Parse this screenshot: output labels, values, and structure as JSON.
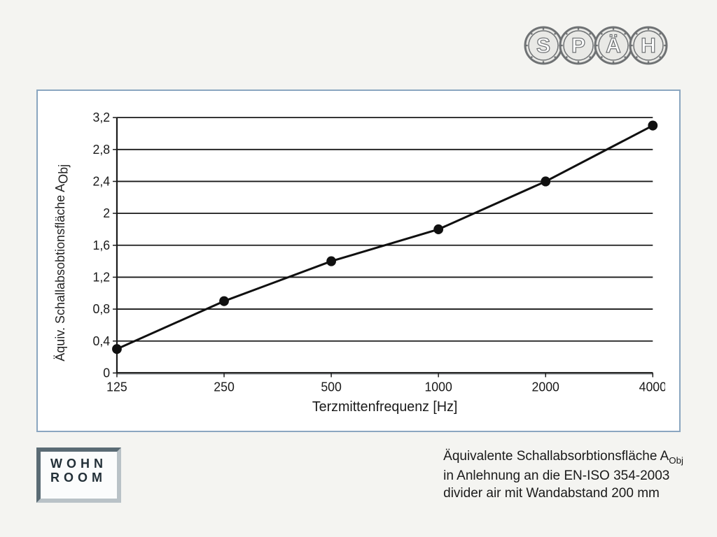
{
  "logo_top": {
    "text": "SPÄH",
    "letter_fill": "#ffffff",
    "ring_stroke": "#6f7274",
    "ring_fill": "#e9e9e6"
  },
  "logo_bottom": {
    "line1": "WOHN",
    "line2": "ROOM"
  },
  "chart": {
    "type": "line",
    "ylabel": "Äquiv. Schallabsobtionsfläche A",
    "ylabel_sub": "Obj",
    "xlabel": "Terzmittenfrequenz [Hz]",
    "x_ticks": [
      "125",
      "250",
      "500",
      "1000",
      "2000",
      "4000"
    ],
    "y_ticks": [
      "0",
      "0,4",
      "0,8",
      "1,2",
      "1,6",
      "2",
      "2,4",
      "2,8",
      "3,2"
    ],
    "y_values_numeric": [
      0,
      0.4,
      0.8,
      1.2,
      1.6,
      2.0,
      2.4,
      2.8,
      3.2
    ],
    "ylim": [
      0,
      3.2
    ],
    "series": {
      "x_index": [
        0,
        1,
        2,
        3,
        4,
        5
      ],
      "y": [
        0.3,
        0.9,
        1.4,
        1.8,
        2.4,
        3.1
      ]
    },
    "colors": {
      "panel_border": "#8aa6c0",
      "panel_bg": "#ffffff",
      "grid": "#1a1a1a",
      "grid_light": "#bfc4c7",
      "axis": "#1a1a1a",
      "line": "#101010",
      "marker_fill": "#101010",
      "text": "#1a1a1a"
    },
    "style": {
      "line_width": 3,
      "marker_radius": 7,
      "grid_width": 1.8,
      "axis_width": 2.2,
      "tick_fontsize": 18,
      "label_fontsize": 20
    }
  },
  "caption": {
    "line1a": "Äquivalente Schallabsorbtionsfläche A",
    "line1_sub": "Obj",
    "line2": "in Anlehnung an die EN-ISO 354-2003",
    "line3": "divider air mit Wandabstand 200 mm"
  },
  "page_bg": "#f4f4f1"
}
